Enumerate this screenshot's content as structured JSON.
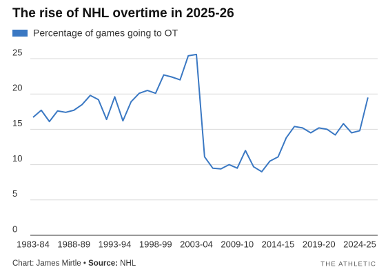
{
  "chart_data": {
    "type": "line",
    "title": "The rise of NHL overtime in 2025-26",
    "categories": [
      "1983-84",
      null,
      null,
      null,
      null,
      "1988-89",
      null,
      null,
      null,
      null,
      "1993-94",
      null,
      null,
      null,
      null,
      "1998-99",
      null,
      null,
      null,
      null,
      "2003-04",
      null,
      null,
      null,
      null,
      "2009-10",
      null,
      null,
      null,
      null,
      "2014-15",
      null,
      null,
      null,
      null,
      "2019-20",
      null,
      null,
      null,
      null,
      "2024-25",
      null
    ],
    "series": [
      {
        "name": "Percentage of games going to OT",
        "color": "#3a78c3",
        "values": [
          16.7,
          17.7,
          16.1,
          17.6,
          17.4,
          17.7,
          18.5,
          19.8,
          19.2,
          16.4,
          19.6,
          16.2,
          18.9,
          20.1,
          20.5,
          20.1,
          22.7,
          22.4,
          22.0,
          25.4,
          25.6,
          11.1,
          9.5,
          9.4,
          10.0,
          9.5,
          12.0,
          9.7,
          9.0,
          10.5,
          11.1,
          13.8,
          15.4,
          15.2,
          14.5,
          15.2,
          15.0,
          14.2,
          15.8,
          14.5,
          14.8,
          19.5
        ]
      }
    ],
    "ylim": [
      0,
      25
    ],
    "yticks": [
      0,
      5,
      10,
      15,
      20,
      25
    ],
    "grid": true,
    "credit": "Chart: James Mirtle •",
    "source_label": "Source:",
    "source": "NHL",
    "brand": "THE ATHLETIC"
  }
}
